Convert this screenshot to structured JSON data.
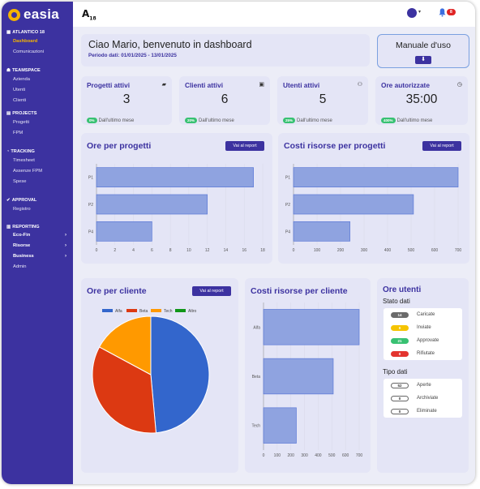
{
  "app": {
    "name": "easia",
    "company_mark": "A",
    "company_mark_sup": "18",
    "notification_count": "8"
  },
  "sidebar": {
    "org": "ATLANTICO 18",
    "org_items": [
      "Dashboard",
      "Comunicazioni"
    ],
    "teamspace": "TEAMSPACE",
    "teamspace_items": [
      "Azienda",
      "Utenti",
      "Clienti"
    ],
    "projects": "PROJECTS",
    "projects_items": [
      "Progetti",
      "FPM"
    ],
    "tracking": "TRACKING",
    "tracking_items": [
      "Timesheet",
      "Assenze FPM",
      "Spese"
    ],
    "approval": "APPROVAL",
    "approval_items": [
      "Registro"
    ],
    "reporting": "REPORTING",
    "reporting_items": [
      "Eco-Fin",
      "Risorse",
      "Business",
      "Admin"
    ]
  },
  "welcome": {
    "title": "Ciao Mario, benvenuto in dashboard",
    "period": "Periodo dati: 01/01/2025 - 13/01/2025"
  },
  "manual": {
    "label": "Manuale d'uso",
    "icon": "download-icon"
  },
  "stats": [
    {
      "title": "Progetti attivi",
      "value": "3",
      "pct": "0%",
      "note": "Dall'ultimo mese",
      "icon": "folder-icon"
    },
    {
      "title": "Clienti attivi",
      "value": "6",
      "pct": "20%",
      "note": "Dall'ultimo mese",
      "icon": "id-card-icon"
    },
    {
      "title": "Utenti attivi",
      "value": "5",
      "pct": "25%",
      "note": "Dall'ultimo mese",
      "icon": "users-icon"
    },
    {
      "title": "Ore autorizzate",
      "value": "35:00",
      "pct": "400%",
      "note": "Dall'ultimo mese",
      "icon": "clock-icon"
    }
  ],
  "report_button": "Vai al report",
  "charts": {
    "ore_progetti": {
      "title": "Ore per progetti"
    },
    "costi_progetti": {
      "title": "Costi risorse per progetti"
    },
    "ore_cliente": {
      "title": "Ore per cliente"
    },
    "costi_cliente": {
      "title": "Costi risorse per cliente"
    }
  },
  "chart_data": [
    {
      "type": "bar",
      "orientation": "horizontal",
      "title": "Ore per progetti",
      "categories": [
        "P1",
        "P2",
        "P4"
      ],
      "values": [
        17,
        12,
        6
      ],
      "xlim": [
        0,
        18
      ],
      "ticks": [
        "0",
        "2",
        "4",
        "6",
        "8",
        "10",
        "12",
        "14",
        "16",
        "18"
      ],
      "color": "#8fa3e0"
    },
    {
      "type": "bar",
      "orientation": "horizontal",
      "title": "Costi risorse per progetti",
      "categories": [
        "P1",
        "P2",
        "P4"
      ],
      "values": [
        700,
        510,
        240
      ],
      "xlim": [
        0,
        700
      ],
      "ticks": [
        "0",
        "100",
        "200",
        "300",
        "400",
        "500",
        "600",
        "700"
      ],
      "color": "#8fa3e0"
    },
    {
      "type": "pie",
      "title": "Ore per cliente",
      "categories": [
        "Alfa",
        "Beta",
        "Tech",
        "Altro"
      ],
      "values": [
        17,
        12,
        6,
        0
      ],
      "colors": [
        "#3366cc",
        "#dc3912",
        "#ff9900",
        "#109618"
      ]
    },
    {
      "type": "bar",
      "orientation": "horizontal",
      "title": "Costi risorse per cliente",
      "categories": [
        "Alfa",
        "Beta",
        "Tech"
      ],
      "values": [
        700,
        510,
        240
      ],
      "xlim": [
        0,
        700
      ],
      "ticks": [
        "0",
        "100",
        "200",
        "300",
        "400",
        "500",
        "600",
        "700"
      ],
      "color": "#8fa3e0"
    }
  ],
  "ore_utenti": {
    "title": "Ore utenti",
    "stato_title": "Stato dati",
    "stato": [
      {
        "count": "14",
        "label": "Caricate",
        "color": "#6b6b6b"
      },
      {
        "count": "0",
        "label": "Inviate",
        "color": "#f5c400"
      },
      {
        "count": "21",
        "label": "Approvate",
        "color": "#38c172"
      },
      {
        "count": "0",
        "label": "Rifiutate",
        "color": "#e3342f"
      }
    ],
    "tipo_title": "Tipo dati",
    "tipo": [
      {
        "count": "52",
        "label": "Aperte"
      },
      {
        "count": "0",
        "label": "Archiviate"
      },
      {
        "count": "0",
        "label": "Eliminate"
      }
    ]
  }
}
